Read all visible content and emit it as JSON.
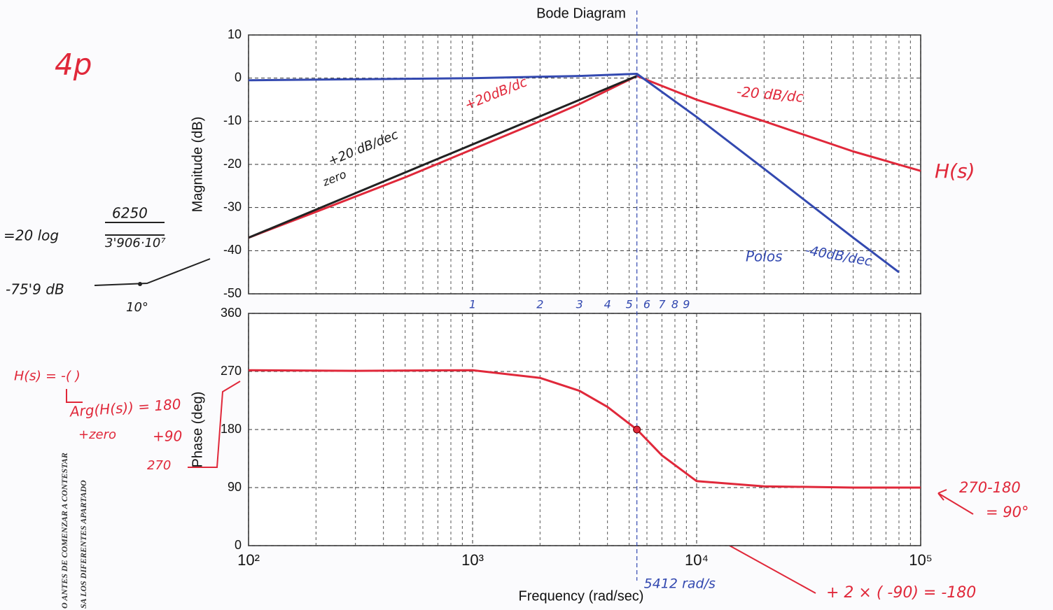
{
  "chart_data": [
    {
      "type": "line",
      "title": "Bode Diagram",
      "ylabel": "Magnitude (dB)",
      "xscale": "log",
      "xlim": [
        100,
        100000
      ],
      "xticks": [
        100,
        1000,
        10000,
        100000
      ],
      "ylim": [
        -50,
        10
      ],
      "yticks": [
        10,
        0,
        -10,
        -20,
        -30,
        -40,
        -50
      ],
      "grid": "both",
      "series": [
        {
          "name": "H(s)",
          "color": "#e0283a",
          "x": [
            100,
            200,
            500,
            1000,
            2000,
            3000,
            5412,
            10000,
            20000,
            50000,
            100000
          ],
          "values": [
            -37,
            -31,
            -23,
            -16.5,
            -10,
            -6,
            0.5,
            -5,
            -10,
            -17,
            -21.5
          ]
        },
        {
          "name": "Polos",
          "color": "#3349b0",
          "x": [
            100,
            1000,
            3000,
            5412,
            10000,
            20000,
            50000,
            80000
          ],
          "values": [
            -0.5,
            0,
            0.5,
            1,
            -9,
            -21,
            -37,
            -45
          ]
        },
        {
          "color": "#222222",
          "x": [
            100,
            5412
          ],
          "values": [
            -37,
            0.5
          ]
        }
      ]
    },
    {
      "type": "line",
      "ylabel": "Phase (deg)",
      "xlabel": "Frequency  (rad/sec)",
      "xscale": "log",
      "xlim": [
        100,
        100000
      ],
      "xticks": [
        {
          "value": 100,
          "label": "10²"
        },
        {
          "value": 1000,
          "label": "10³"
        },
        {
          "value": 10000,
          "label": "10⁴"
        },
        {
          "value": 100000,
          "label": "10⁵"
        }
      ],
      "ylim": [
        0,
        360
      ],
      "yticks": [
        0,
        90,
        180,
        270,
        360
      ],
      "grid": "both",
      "series": [
        {
          "color": "#e0283a",
          "x": [
            100,
            300,
            1000,
            2000,
            3000,
            4000,
            5412,
            7000,
            10000,
            20000,
            50000,
            100000
          ],
          "values": [
            272,
            271,
            272,
            260,
            240,
            215,
            180,
            140,
            100,
            92,
            90,
            90
          ]
        }
      ],
      "highlight": {
        "x": 5412,
        "value": 180
      },
      "vline": {
        "value": 5412,
        "label": "5412 rad/s"
      }
    }
  ],
  "minor_labels": [
    "1",
    "2",
    "3",
    "4",
    "5",
    "6",
    "7",
    "8",
    "9"
  ],
  "annotations": [
    "4p",
    "+20 dB/dec",
    "zero",
    "+20dB/dc",
    "-20 dB/dc",
    "-40dB/dec",
    "=20 log",
    "6250",
    "3'906·10⁷",
    "-75'9 dB",
    "10°",
    "H(s) = -(    )",
    "Arg(H(s)) = 180",
    "+zero",
    "+90",
    "270",
    "270-180",
    "= 90°",
    "+ 2 × ( -90) = -180",
    "O ANTES DE COMENZAR A CONTESTAR",
    "SA LOS DIFERENTES APARTADO"
  ]
}
